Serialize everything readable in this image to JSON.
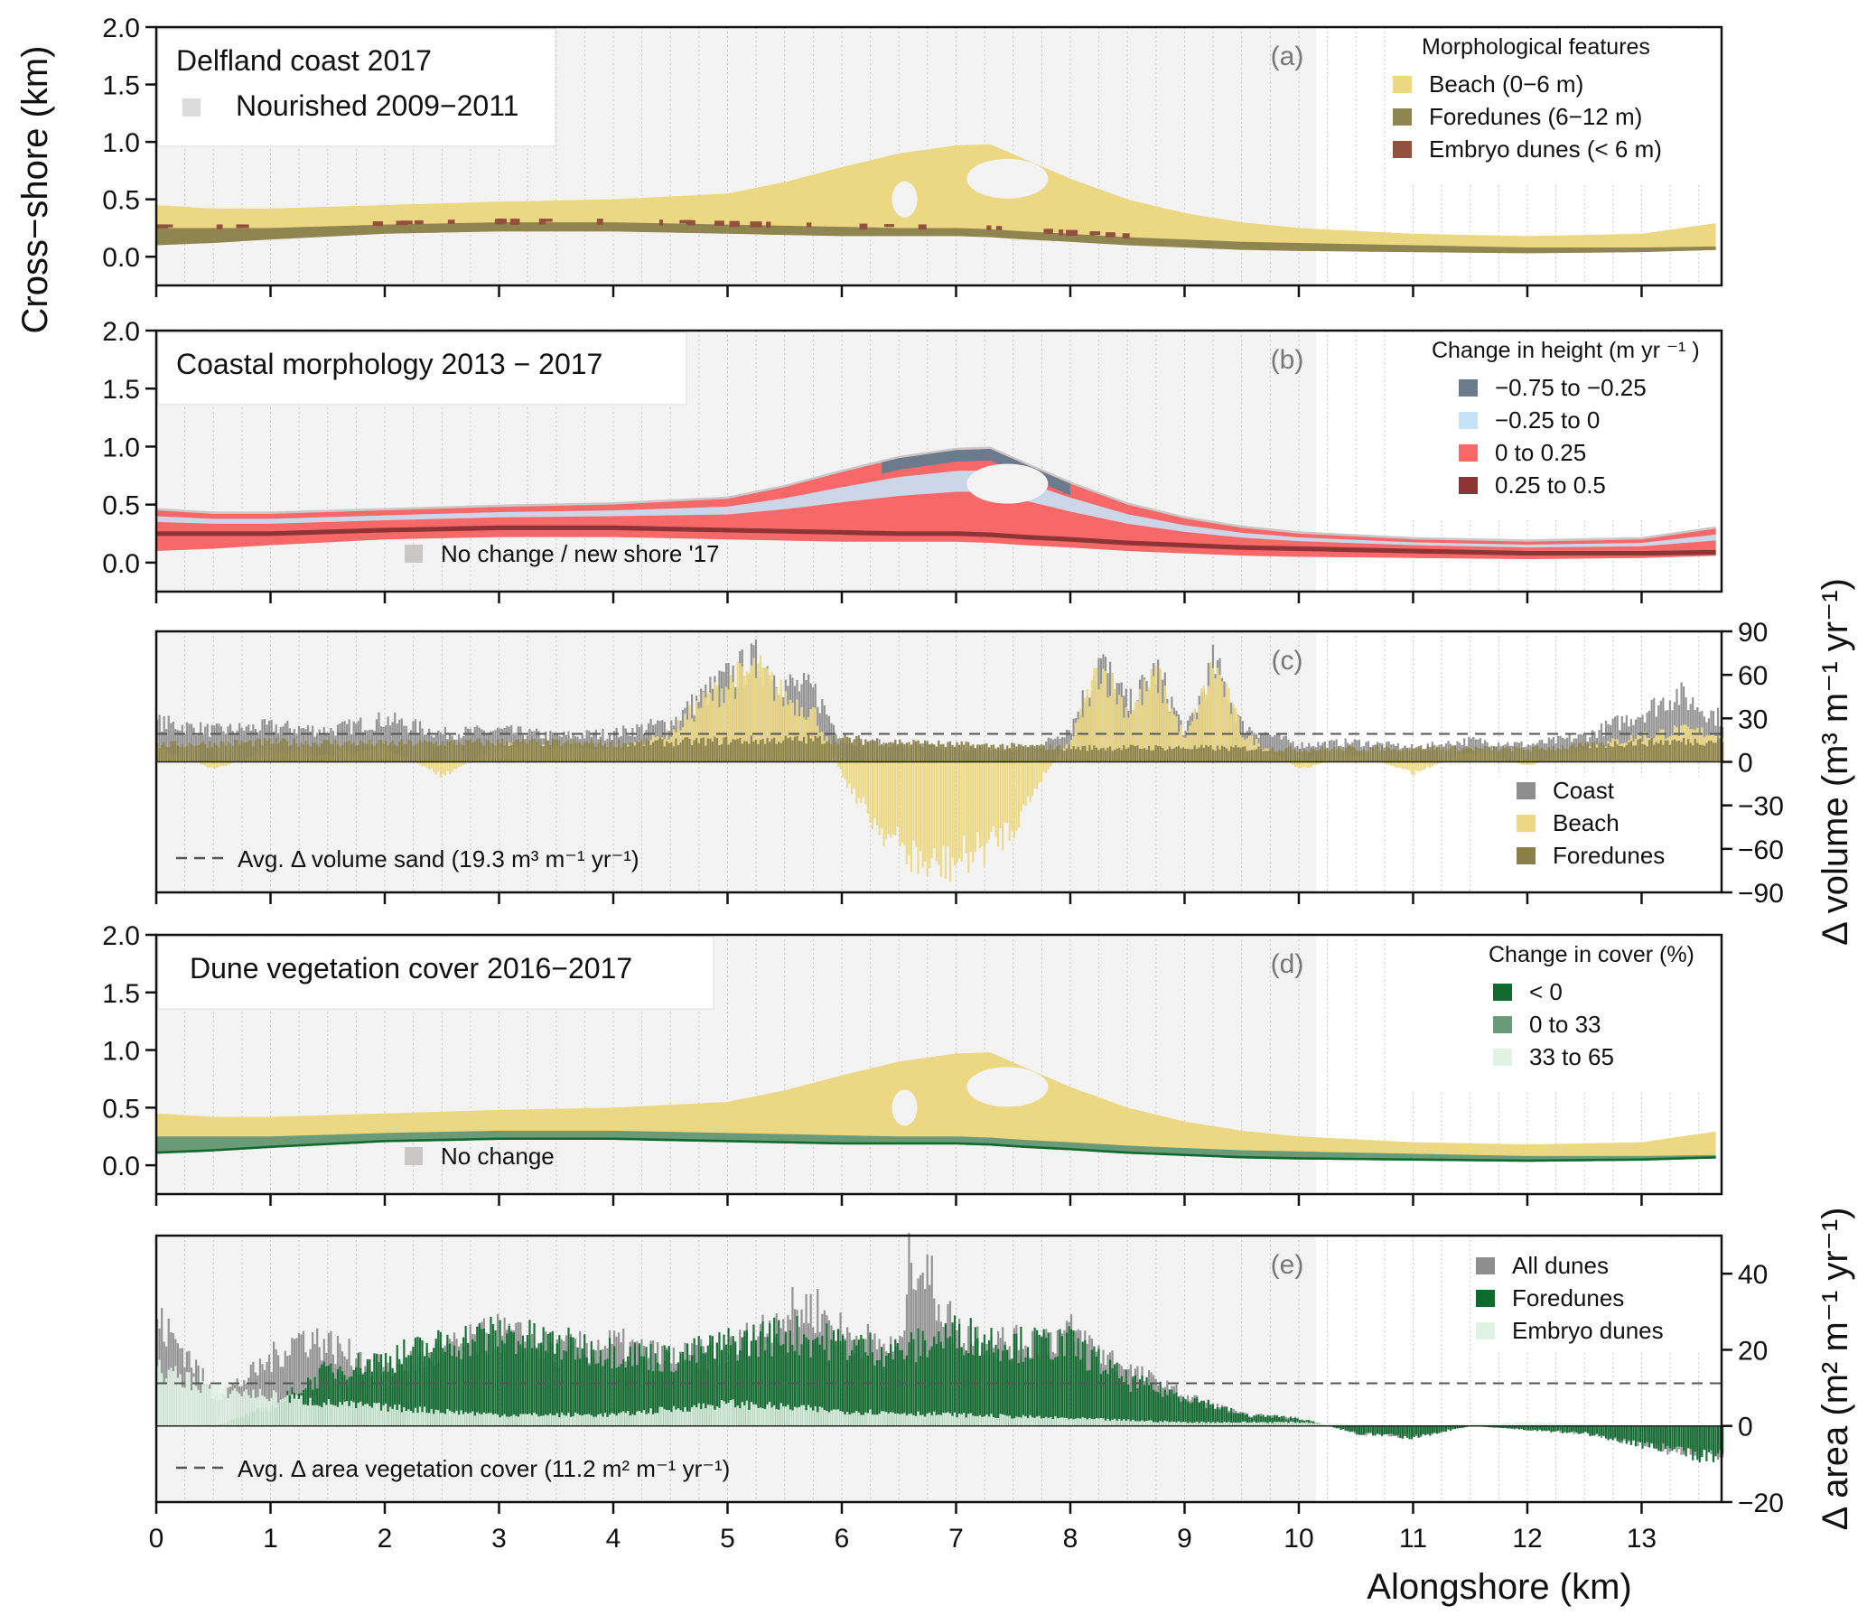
{
  "chart_data": {
    "type": "area",
    "shared_x": {
      "label": "Alongshore  (km)",
      "range": [
        0,
        13.7
      ],
      "ticks": [
        0,
        1,
        2,
        3,
        4,
        5,
        6,
        7,
        8,
        9,
        10,
        11,
        12,
        13
      ],
      "minor_grid_step": 0.25,
      "nourished_extent_km": [
        0,
        10.15
      ]
    },
    "left_ylabel": "Cross−shore (km)",
    "panels": [
      {
        "id": "a",
        "tag": "(a)",
        "type": "map",
        "title": "Delfland coast 2017",
        "inset_legend": [
          {
            "label": "Nourished 2009−2011",
            "color": "#dcdcdc"
          }
        ],
        "ylim": [
          -0.25,
          2.0
        ],
        "yticks": [
          "2.0",
          "1.5",
          "1.0",
          "0.5",
          "0.0"
        ],
        "yticks_values": [
          2.0,
          1.5,
          1.0,
          0.5,
          0.0
        ],
        "legend_title": "Morphological features",
        "legend": [
          {
            "label": "Beach (0−6 m)",
            "color": "#ecd882"
          },
          {
            "label": "Foredunes (6−12 m)",
            "color": "#8f8550"
          },
          {
            "label": "Embryo dunes (< 6 m)",
            "color": "#93503e"
          }
        ],
        "profiles": {
          "x": [
            0,
            0.5,
            1,
            2,
            3,
            4,
            5,
            5.5,
            6,
            6.5,
            7,
            7.3,
            7.6,
            8,
            8.5,
            9,
            9.5,
            10,
            11,
            12,
            13,
            13.7
          ],
          "beach_top": [
            0.45,
            0.42,
            0.42,
            0.45,
            0.48,
            0.5,
            0.55,
            0.65,
            0.78,
            0.9,
            0.97,
            0.98,
            0.85,
            0.68,
            0.5,
            0.38,
            0.3,
            0.25,
            0.2,
            0.18,
            0.2,
            0.3
          ],
          "foredune_top": [
            0.25,
            0.25,
            0.25,
            0.28,
            0.3,
            0.3,
            0.28,
            0.27,
            0.26,
            0.25,
            0.25,
            0.24,
            0.22,
            0.2,
            0.17,
            0.15,
            0.13,
            0.12,
            0.1,
            0.08,
            0.08,
            0.09
          ],
          "foredune_bottom": [
            0.1,
            0.12,
            0.15,
            0.2,
            0.22,
            0.22,
            0.2,
            0.19,
            0.18,
            0.18,
            0.18,
            0.17,
            0.15,
            0.13,
            0.1,
            0.08,
            0.06,
            0.05,
            0.04,
            0.03,
            0.04,
            0.06
          ]
        }
      },
      {
        "id": "b",
        "tag": "(b)",
        "type": "map",
        "title": "Coastal morphology 2013 − 2017",
        "ylim": [
          -0.25,
          2.0
        ],
        "yticks": [
          "2.0",
          "1.5",
          "1.0",
          "0.5",
          "0.0"
        ],
        "yticks_values": [
          2.0,
          1.5,
          1.0,
          0.5,
          0.0
        ],
        "legend_title": "Change in height (m yr ⁻¹ )",
        "legend": [
          {
            "label": "−0.75 to −0.25",
            "color": "#6b7a8c"
          },
          {
            "label": "−0.25 to 0",
            "color": "#c6e2f7"
          },
          {
            "label": "0 to 0.25",
            "color": "#f76868"
          },
          {
            "label": "0.25 to 0.5",
            "color": "#8e3436"
          }
        ],
        "inset_legend": [
          {
            "label": "No change / new shore '17",
            "color": "#cbc7c7"
          }
        ]
      },
      {
        "id": "c",
        "tag": "(c)",
        "type": "bar",
        "ylabel": "Δ volume (m³  m⁻¹ yr⁻¹)",
        "ylim": [
          -90,
          90
        ],
        "yticks": [
          "90",
          "60",
          "30",
          "0",
          "−30",
          "−60",
          "−90"
        ],
        "yticks_values": [
          90,
          60,
          30,
          0,
          -30,
          -60,
          -90
        ],
        "legend": [
          {
            "label": "Coast",
            "color": "#8e8e8e"
          },
          {
            "label": "Beach",
            "color": "#ecd882"
          },
          {
            "label": "Foredunes",
            "color": "#8a7f48"
          }
        ],
        "avg_line": {
          "label": "Avg. Δ volume sand (19.3 m³ m⁻¹ yr⁻¹)",
          "value": 19.3
        },
        "series": [
          {
            "name": "Coast",
            "x": [
              0,
              0.5,
              1,
              1.5,
              2,
              2.5,
              3,
              3.5,
              4,
              4.5,
              4.75,
              5,
              5.25,
              5.5,
              5.75,
              6,
              6.5,
              7,
              7.5,
              7.75,
              8,
              8.25,
              8.5,
              8.75,
              9,
              9.25,
              9.5,
              10,
              10.5,
              11,
              11.5,
              12,
              12.5,
              13,
              13.3,
              13.7
            ],
            "values": [
              28,
              22,
              25,
              22,
              30,
              20,
              22,
              18,
              20,
              28,
              45,
              60,
              72,
              55,
              50,
              15,
              12,
              10,
              8,
              12,
              25,
              72,
              40,
              65,
              20,
              70,
              25,
              12,
              14,
              10,
              15,
              12,
              18,
              35,
              48,
              30
            ]
          },
          {
            "name": "Beach",
            "x": [
              0,
              0.5,
              1,
              1.5,
              2,
              2.5,
              3,
              3.5,
              4,
              4.5,
              4.75,
              5,
              5.25,
              5.5,
              5.75,
              6,
              6.25,
              6.5,
              6.75,
              7,
              7.25,
              7.5,
              7.75,
              8,
              8.25,
              8.5,
              8.75,
              9,
              9.25,
              9.5,
              10,
              10.5,
              11,
              11.5,
              12,
              12.5,
              13,
              13.3,
              13.7
            ],
            "values": [
              10,
              -5,
              8,
              5,
              10,
              -10,
              12,
              10,
              8,
              20,
              40,
              55,
              65,
              45,
              35,
              -10,
              -40,
              -60,
              -75,
              -70,
              -60,
              -45,
              -10,
              15,
              68,
              35,
              60,
              15,
              68,
              20,
              -5,
              5,
              -8,
              8,
              -3,
              10,
              18,
              22,
              20
            ]
          },
          {
            "name": "Foredunes",
            "x": [
              0,
              1,
              2,
              3,
              4,
              5,
              6,
              7,
              8,
              9,
              10,
              11,
              12,
              13,
              13.7
            ],
            "values": [
              12,
              14,
              13,
              14,
              13,
              15,
              16,
              12,
              10,
              10,
              9,
              10,
              9,
              14,
              15
            ]
          }
        ]
      },
      {
        "id": "d",
        "tag": "(d)",
        "type": "map",
        "title": "Dune vegetation cover 2016−2017",
        "ylim": [
          -0.25,
          2.0
        ],
        "yticks": [
          "2.0",
          "1.5",
          "1.0",
          "0.5",
          "0.0"
        ],
        "yticks_values": [
          2.0,
          1.5,
          1.0,
          0.5,
          0.0
        ],
        "legend_title": "Change in cover (%)",
        "legend": [
          {
            "label": "< 0",
            "color": "#0f6a2e"
          },
          {
            "label": "0 to 33",
            "color": "#6a9a78"
          },
          {
            "label": "33 to 65",
            "color": "#dff2e4"
          }
        ],
        "inset_legend": [
          {
            "label": "No change",
            "color": "#cbc7c7"
          }
        ]
      },
      {
        "id": "e",
        "tag": "(e)",
        "type": "bar",
        "ylabel": "Δ area (m²  m⁻¹ yr⁻¹)",
        "ylim": [
          -20,
          50
        ],
        "yticks": [
          "40",
          "20",
          "0",
          "−20"
        ],
        "yticks_values": [
          40,
          20,
          0,
          -20
        ],
        "legend": [
          {
            "label": "All dunes",
            "color": "#8e8e8e"
          },
          {
            "label": "Foredunes",
            "color": "#0f6a2e"
          },
          {
            "label": "Embryo dunes",
            "color": "#dff2e4"
          }
        ],
        "avg_line": {
          "label": "Avg. Δ area vegetation cover (11.2 m²  m⁻¹ yr⁻¹)",
          "value": 11.2
        },
        "series": [
          {
            "name": "All dunes",
            "x": [
              0,
              0.25,
              0.5,
              0.75,
              1,
              1.25,
              1.5,
              1.75,
              2,
              2.5,
              3,
              3.5,
              4,
              4.5,
              5,
              5.5,
              5.75,
              6,
              6.5,
              6.6,
              7,
              7.5,
              8,
              8.5,
              9,
              9.5,
              10,
              10.5,
              11,
              11.5,
              12,
              12.5,
              13,
              13.5,
              13.7
            ],
            "values": [
              28,
              20,
              8,
              12,
              18,
              24,
              22,
              18,
              15,
              20,
              25,
              20,
              22,
              18,
              20,
              30,
              32,
              25,
              20,
              48,
              25,
              22,
              25,
              15,
              8,
              3,
              2,
              -2,
              -3,
              0,
              -1,
              -2,
              -5,
              -8,
              -8
            ]
          },
          {
            "name": "Foredunes",
            "x": [
              0,
              0.5,
              1,
              1.5,
              2,
              2.5,
              3,
              3.5,
              4,
              4.5,
              5,
              5.5,
              6,
              6.5,
              7,
              7.5,
              8,
              8.5,
              9,
              9.5,
              10,
              10.5,
              11,
              11.5,
              12,
              12.5,
              13,
              13.5,
              13.7
            ],
            "values": [
              0,
              0,
              5,
              15,
              18,
              22,
              25,
              22,
              20,
              18,
              22,
              25,
              22,
              20,
              25,
              22,
              22,
              12,
              8,
              3,
              2,
              -2,
              -3,
              0,
              -1,
              -2,
              -5,
              -8,
              -8
            ]
          },
          {
            "name": "Embryo dunes",
            "x": [
              0,
              0.5,
              1,
              1.5,
              2,
              3,
              4,
              5,
              6,
              7,
              8,
              9,
              10,
              11,
              12,
              13,
              13.7
            ],
            "values": [
              15,
              10,
              8,
              6,
              5,
              3,
              3,
              6,
              4,
              3,
              2,
              1,
              1,
              0,
              1,
              0,
              0
            ]
          }
        ]
      }
    ]
  }
}
